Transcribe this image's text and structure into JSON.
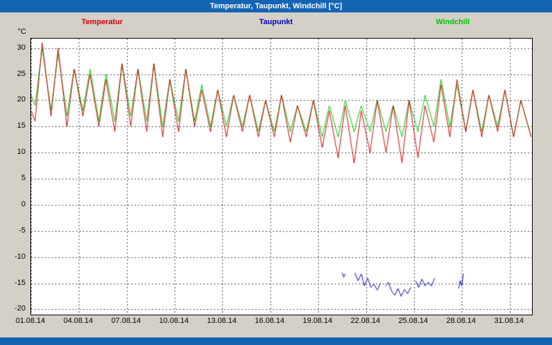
{
  "window": {
    "title": "Temperatur, Taupunkt, Windchill [°C]"
  },
  "colors": {
    "titlebar": "#1464b4",
    "background": "#d4d0c8",
    "plot_background": "#ffffff",
    "grid": "#444444",
    "temperatur": "#d40000",
    "taupunkt": "#0000c8",
    "windchill": "#00c400"
  },
  "chart_data": {
    "type": "line",
    "title": "Temperatur, Taupunkt, Windchill [°C]",
    "y_unit_label": "°C",
    "xlabel": "",
    "ylabel": "°C",
    "grid": "dashed",
    "legend_position": "top",
    "xlim": [
      1,
      32.4
    ],
    "ylim": [
      -21,
      31.8
    ],
    "y_ticks": [
      30,
      25,
      20,
      15,
      10,
      5,
      0,
      -5,
      -10,
      -15,
      -20
    ],
    "x_ticks": [
      {
        "day": 1,
        "label": "01.08.14"
      },
      {
        "day": 4,
        "label": "04.08.14"
      },
      {
        "day": 7,
        "label": "07.08.14"
      },
      {
        "day": 10,
        "label": "10.08.14"
      },
      {
        "day": 13,
        "label": "13.08.14"
      },
      {
        "day": 16,
        "label": "16.08.14"
      },
      {
        "day": 19,
        "label": "19.08.14"
      },
      {
        "day": 22,
        "label": "22.08.14"
      },
      {
        "day": 25,
        "label": "25.08.14"
      },
      {
        "day": 28,
        "label": "28.08.14"
      },
      {
        "day": 31,
        "label": "31.08.14"
      }
    ],
    "series": [
      {
        "name": "Temperatur",
        "color": "#d40000",
        "x": [
          1.0,
          1.25,
          1.7,
          2.25,
          2.7,
          3.25,
          3.7,
          4.25,
          4.7,
          5.25,
          5.7,
          6.25,
          6.7,
          7.25,
          7.7,
          8.25,
          8.7,
          9.25,
          9.7,
          10.25,
          10.7,
          11.25,
          11.7,
          12.25,
          12.7,
          13.25,
          13.7,
          14.25,
          14.7,
          15.25,
          15.7,
          16.25,
          16.7,
          17.25,
          17.7,
          18.25,
          18.7,
          19.25,
          19.7,
          20.25,
          20.7,
          21.25,
          21.7,
          22.25,
          22.7,
          23.25,
          23.7,
          24.25,
          24.7,
          25.25,
          25.7,
          26.25,
          26.7,
          27.25,
          27.7,
          28.25,
          28.7,
          29.25,
          29.7,
          30.25,
          30.7,
          31.25,
          31.7,
          32.35
        ],
        "y": [
          18,
          16,
          31,
          17,
          30,
          15,
          26,
          17,
          25,
          15,
          24,
          14,
          27,
          15,
          26,
          14,
          27,
          13,
          24,
          14,
          26,
          15,
          22,
          14,
          22,
          13,
          21,
          14,
          21,
          13,
          20,
          13,
          21,
          12,
          19,
          13,
          20,
          11,
          18,
          9,
          19,
          8,
          18,
          10,
          20,
          10,
          19,
          8,
          20,
          9,
          19,
          12,
          23,
          13,
          24,
          14,
          22,
          13,
          21,
          14,
          22,
          13,
          20,
          13
        ]
      },
      {
        "name": "Taupunkt",
        "color": "#0000c8",
        "x": [
          20.5,
          20.6,
          20.7,
          21.0,
          21.3,
          21.5,
          21.7,
          21.9,
          22.1,
          22.3,
          22.5,
          22.7,
          22.9,
          23.05,
          23.2,
          23.4,
          23.6,
          23.8,
          24.0,
          24.2,
          24.4,
          24.6,
          24.8,
          24.95,
          25.1,
          25.3,
          25.5,
          25.7,
          25.9,
          26.1,
          26.3,
          27.0,
          27.8,
          27.9,
          28.0,
          28.1
        ],
        "y": [
          -13.0,
          -13.8,
          -13.2,
          null,
          -13.0,
          -14.5,
          -13.2,
          -15.5,
          -14.0,
          -15.8,
          -15.2,
          -16.3,
          -15.0,
          null,
          -15.5,
          -14.8,
          -16.5,
          -17.3,
          -16.0,
          -17.5,
          -16.2,
          -17.0,
          -15.8,
          null,
          -14.5,
          -15.8,
          -14.2,
          -15.5,
          -14.8,
          -15.5,
          -14.0,
          null,
          -16.0,
          -14.5,
          -15.5,
          -13.2
        ]
      },
      {
        "name": "Windchill",
        "color": "#00c400",
        "x": [
          1.0,
          1.25,
          1.7,
          2.25,
          2.7,
          3.25,
          3.7,
          4.25,
          4.7,
          5.25,
          5.7,
          6.25,
          6.7,
          7.25,
          7.7,
          8.25,
          8.7,
          9.25,
          9.7,
          10.25,
          10.7,
          11.25,
          11.7,
          12.25,
          12.7,
          13.25,
          13.7,
          14.25,
          14.7,
          15.25,
          15.7,
          16.25,
          16.7,
          17.25,
          17.7,
          18.25,
          18.7,
          19.25,
          19.7,
          20.25,
          20.7,
          21.25,
          21.7,
          22.25,
          22.7,
          23.25,
          23.7,
          24.25,
          24.7,
          25.25,
          25.7,
          26.25,
          26.7,
          27.25,
          27.7,
          28.25,
          28.7,
          29.25,
          29.7,
          30.25,
          30.7,
          31.25,
          31.7,
          32.35
        ],
        "y": [
          21,
          19,
          30,
          18,
          29,
          17,
          26,
          18,
          26,
          16,
          25,
          16,
          27,
          17,
          26,
          16,
          27,
          15,
          24,
          16,
          26,
          16,
          23,
          15,
          22,
          15,
          21,
          15,
          21,
          14,
          20,
          14,
          21,
          14,
          19,
          14,
          20,
          13,
          19,
          13,
          20,
          14,
          19,
          14,
          20,
          14,
          19,
          13,
          20,
          14,
          21,
          15,
          24,
          15,
          23,
          14,
          22,
          14,
          21,
          15,
          22,
          13,
          20,
          13
        ]
      }
    ]
  }
}
